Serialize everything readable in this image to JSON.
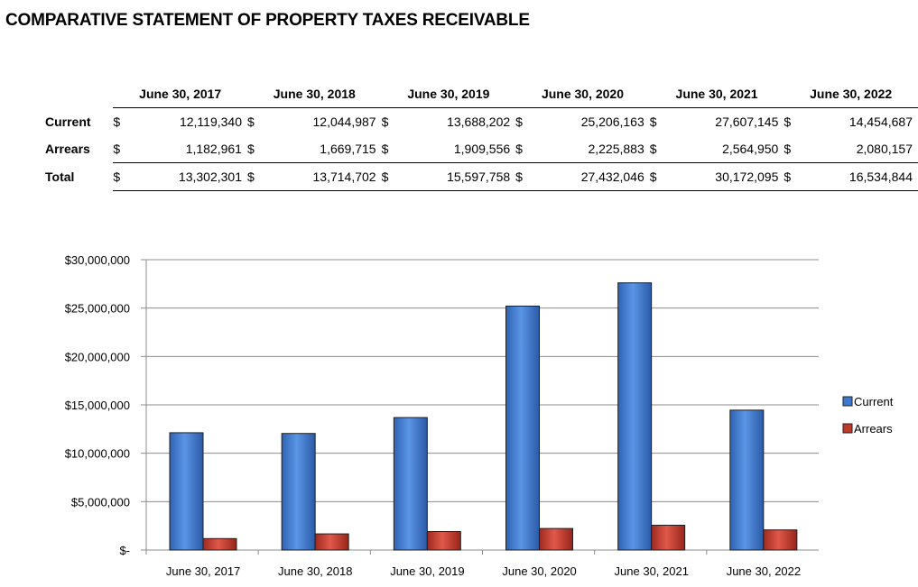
{
  "title": "COMPARATIVE STATEMENT OF PROPERTY TAXES RECEIVABLE",
  "table": {
    "columns": [
      "June 30, 2017",
      "June 30, 2018",
      "June 30, 2019",
      "June 30, 2020",
      "June 30, 2021",
      "June 30, 2022"
    ],
    "currency_symbol": "$",
    "rows": [
      {
        "label": "Current",
        "values": [
          "12,119,340",
          "12,044,987",
          "13,688,202",
          "25,206,163",
          "27,607,145",
          "14,454,687"
        ]
      },
      {
        "label": "Arrears",
        "values": [
          "1,182,961",
          "1,669,715",
          "1,909,556",
          "2,225,883",
          "2,564,950",
          "2,080,157"
        ]
      },
      {
        "label": "Total",
        "values": [
          "13,302,301",
          "13,714,702",
          "15,597,758",
          "27,432,046",
          "30,172,095",
          "16,534,844"
        ]
      }
    ]
  },
  "chart_data": {
    "type": "bar",
    "categories": [
      "June 30, 2017",
      "June 30, 2018",
      "June 30, 2019",
      "June 30, 2020",
      "June 30, 2021",
      "June 30, 2022"
    ],
    "series": [
      {
        "name": "Current",
        "values": [
          12119340,
          12044987,
          13688202,
          25206163,
          27607145,
          14454687
        ],
        "color": "#3c78d0"
      },
      {
        "name": "Arrears",
        "values": [
          1182961,
          1669715,
          1909556,
          2225883,
          2564950,
          2080157
        ],
        "color": "#c0392b"
      }
    ],
    "ylim": [
      0,
      30000000
    ],
    "yticks": [
      0,
      5000000,
      10000000,
      15000000,
      20000000,
      25000000,
      30000000
    ],
    "ytick_labels": [
      "$-",
      "$5,000,000",
      "$10,000,000",
      "$15,000,000",
      "$20,000,000",
      "$25,000,000",
      "$30,000,000"
    ],
    "grid": true,
    "legend_position": "right",
    "title": "",
    "xlabel": "",
    "ylabel": ""
  }
}
